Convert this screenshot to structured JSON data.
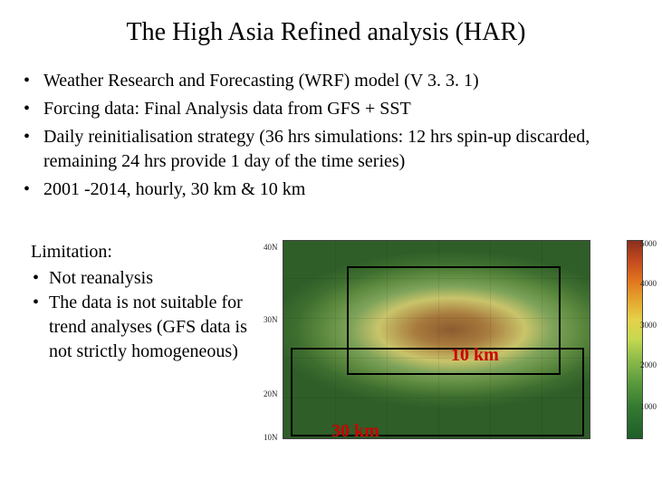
{
  "title": "The High Asia Refined analysis (HAR)",
  "bullets": [
    "Weather Research and Forecasting (WRF) model (V 3. 3. 1)",
    "Forcing data: Final Analysis data from GFS + SST",
    "Daily reinitialisation strategy (36 hrs simulations: 12 hrs spin-up discarded, remaining 24 hrs provide 1 day of the time series)",
    "2001 -2014, hourly, 30 km & 10 km"
  ],
  "limitation": {
    "heading": "Limitation:",
    "items": [
      "Not reanalysis",
      "The data is not suitable for trend analyses (GFS data is not strictly homogeneous)"
    ]
  },
  "map": {
    "label_outer": "30 km",
    "label_inner": "10 km",
    "label_color": "#cc0000",
    "lat_ticks": [
      "40N",
      "30N",
      "20N",
      "10N"
    ],
    "colorbar_ticks": [
      "5000",
      "4000",
      "3000",
      "2000",
      "1000"
    ],
    "colorbar_gradient": [
      "#8c2f1e",
      "#c44a1e",
      "#e0741e",
      "#e5a52e",
      "#e5d24a",
      "#c5d850",
      "#8dbb4a",
      "#5a9a3e",
      "#357a32",
      "#1e5e28"
    ],
    "border_color": "#000000"
  }
}
